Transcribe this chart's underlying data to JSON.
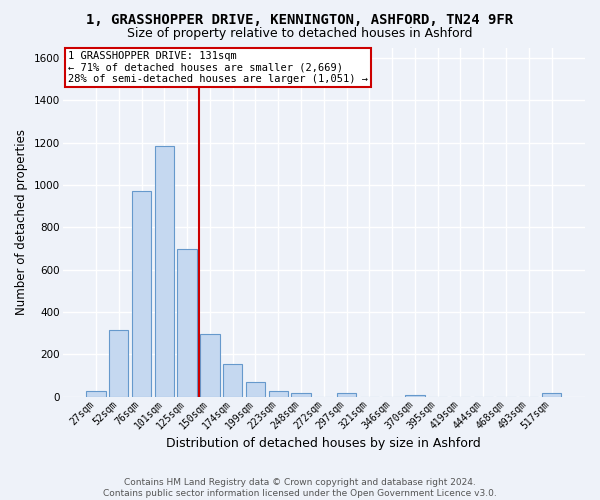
{
  "title": "1, GRASSHOPPER DRIVE, KENNINGTON, ASHFORD, TN24 9FR",
  "subtitle": "Size of property relative to detached houses in Ashford",
  "xlabel": "Distribution of detached houses by size in Ashford",
  "ylabel": "Number of detached properties",
  "categories": [
    "27sqm",
    "52sqm",
    "76sqm",
    "101sqm",
    "125sqm",
    "150sqm",
    "174sqm",
    "199sqm",
    "223sqm",
    "248sqm",
    "272sqm",
    "297sqm",
    "321sqm",
    "346sqm",
    "370sqm",
    "395sqm",
    "419sqm",
    "444sqm",
    "468sqm",
    "493sqm",
    "517sqm"
  ],
  "values": [
    25,
    315,
    970,
    1185,
    700,
    295,
    155,
    70,
    28,
    18,
    0,
    18,
    0,
    0,
    10,
    0,
    0,
    0,
    0,
    0,
    18
  ],
  "bar_color": "#c5d8f0",
  "bar_edge_color": "#6699cc",
  "vline_x": 4.5,
  "vline_color": "#cc0000",
  "annotation_text": "1 GRASSHOPPER DRIVE: 131sqm\n← 71% of detached houses are smaller (2,669)\n28% of semi-detached houses are larger (1,051) →",
  "annotation_box_color": "#ffffff",
  "annotation_edge_color": "#cc0000",
  "ylim": [
    0,
    1650
  ],
  "yticks": [
    0,
    200,
    400,
    600,
    800,
    1000,
    1200,
    1400,
    1600
  ],
  "footer": "Contains HM Land Registry data © Crown copyright and database right 2024.\nContains public sector information licensed under the Open Government Licence v3.0.",
  "bg_color": "#eef2f9",
  "grid_color": "#ffffff",
  "title_fontsize": 10,
  "subtitle_fontsize": 9,
  "tick_fontsize": 7,
  "ylabel_fontsize": 8.5,
  "xlabel_fontsize": 9,
  "footer_fontsize": 6.5
}
